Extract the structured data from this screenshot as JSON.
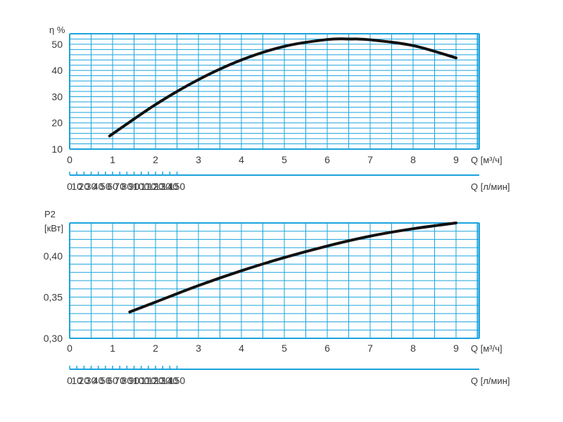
{
  "colors": {
    "grid": "#1aa3dd",
    "curve": "#111111",
    "text": "#3a3a3a"
  },
  "charts": [
    {
      "ylabel_lines": [
        "η %"
      ],
      "yticks": [
        10,
        20,
        30,
        40,
        50
      ],
      "xlabel_m3h": "Q [м³/ч]",
      "xlabel_lmin": "Q [л/мин]"
    },
    {
      "ylabel_lines": [
        "P2",
        "[кВт]"
      ],
      "yticks": [
        "0,30",
        "0,35",
        "0,40"
      ],
      "xlabel_m3h": "Q [м³/ч]",
      "xlabel_lmin": "Q [л/мин]"
    }
  ],
  "chart_data": [
    {
      "type": "line",
      "title": "",
      "ylabel": "η %",
      "xlabel": "Q [м³/ч]",
      "secondary_xlabel": "Q [л/мин]",
      "xlim": [
        0,
        9.5
      ],
      "ylim": [
        10,
        54
      ],
      "xticks": [
        0,
        1,
        2,
        3,
        4,
        5,
        6,
        7,
        8,
        9
      ],
      "secondary_xticks": [
        0,
        10,
        20,
        30,
        40,
        50,
        60,
        70,
        80,
        90,
        100,
        110,
        120,
        130,
        140,
        150
      ],
      "grid": true,
      "series": [
        {
          "x": [
            0.93,
            2,
            3,
            4,
            5,
            6,
            6.5,
            7,
            8,
            9
          ],
          "y": [
            15,
            27,
            36.5,
            44,
            49.2,
            51.8,
            52,
            51.7,
            49.5,
            44.8
          ]
        }
      ]
    },
    {
      "type": "line",
      "title": "",
      "ylabel": "P2 [кВт]",
      "xlabel": "Q [м³/ч]",
      "secondary_xlabel": "Q [л/мин]",
      "xlim": [
        0,
        9.5
      ],
      "ylim": [
        0.3,
        0.44
      ],
      "xticks": [
        0,
        1,
        2,
        3,
        4,
        5,
        6,
        7,
        8,
        9
      ],
      "secondary_xticks": [
        0,
        10,
        20,
        30,
        40,
        50,
        60,
        70,
        80,
        90,
        100,
        110,
        120,
        130,
        140,
        150
      ],
      "grid": true,
      "series": [
        {
          "x": [
            1.4,
            2,
            3,
            4,
            5,
            6,
            7,
            8,
            9
          ],
          "y": [
            0.332,
            0.344,
            0.364,
            0.382,
            0.398,
            0.412,
            0.424,
            0.433,
            0.44
          ]
        }
      ]
    }
  ]
}
